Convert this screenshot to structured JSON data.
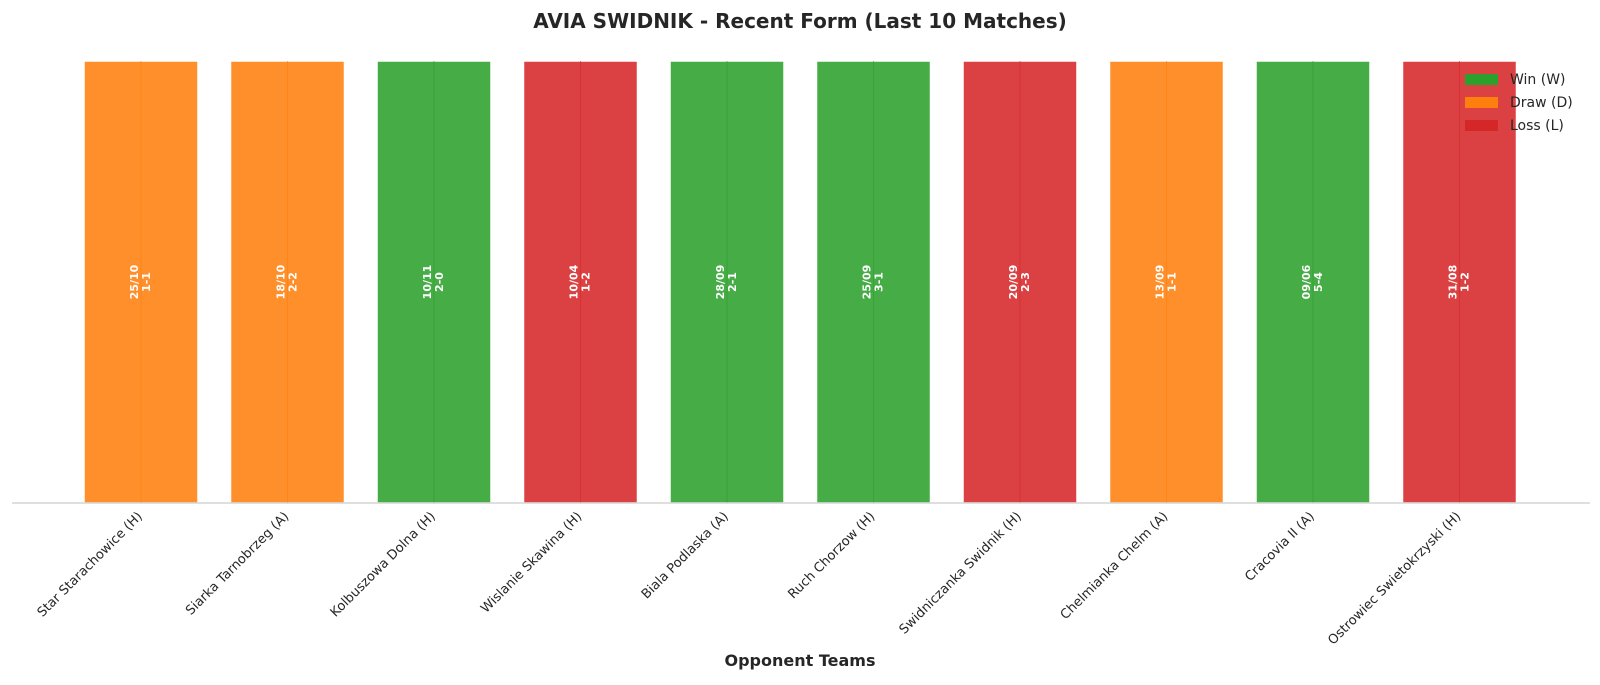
{
  "chart_data": {
    "type": "bar",
    "title": "AVIA SWIDNIK - Recent Form (Last 10 Matches)",
    "xlabel": "Opponent Teams",
    "ylabel": "",
    "categories": [
      "Star Starachowice (H)",
      "Siarka Tarnobrzeg (A)",
      "Kolbuszowa Dolna (H)",
      "Wislanie Skawina (H)",
      "Biala Podlaska (A)",
      "Ruch Chorzow (H)",
      "Swidniczanka Swidnik (H)",
      "Chelmianka Chelm (A)",
      "Cracovia II (A)",
      "Ostrowiec Swietokrzyski (H)"
    ],
    "values": [
      1,
      1,
      1,
      1,
      1,
      1,
      1,
      1,
      1,
      1
    ],
    "results": [
      "D",
      "D",
      "W",
      "L",
      "W",
      "W",
      "L",
      "D",
      "W",
      "L"
    ],
    "dates": [
      "25/10",
      "18/10",
      "10/11",
      "10/04",
      "28/09",
      "25/09",
      "20/09",
      "13/09",
      "09/06",
      "31/08"
    ],
    "scores": [
      "1-1",
      "2-2",
      "2-0",
      "1-2",
      "2-1",
      "3-1",
      "2-3",
      "1-1",
      "5-4",
      "1-2"
    ],
    "ylim": [
      0,
      1
    ],
    "grid": false,
    "legend": {
      "placement": "top-right",
      "entries": [
        {
          "key": "W",
          "label": "Win (W)",
          "color": "#2ca02c"
        },
        {
          "key": "D",
          "label": "Draw (D)",
          "color": "#ff7f0e"
        },
        {
          "key": "L",
          "label": "Loss (L)",
          "color": "#d62728"
        }
      ]
    }
  }
}
